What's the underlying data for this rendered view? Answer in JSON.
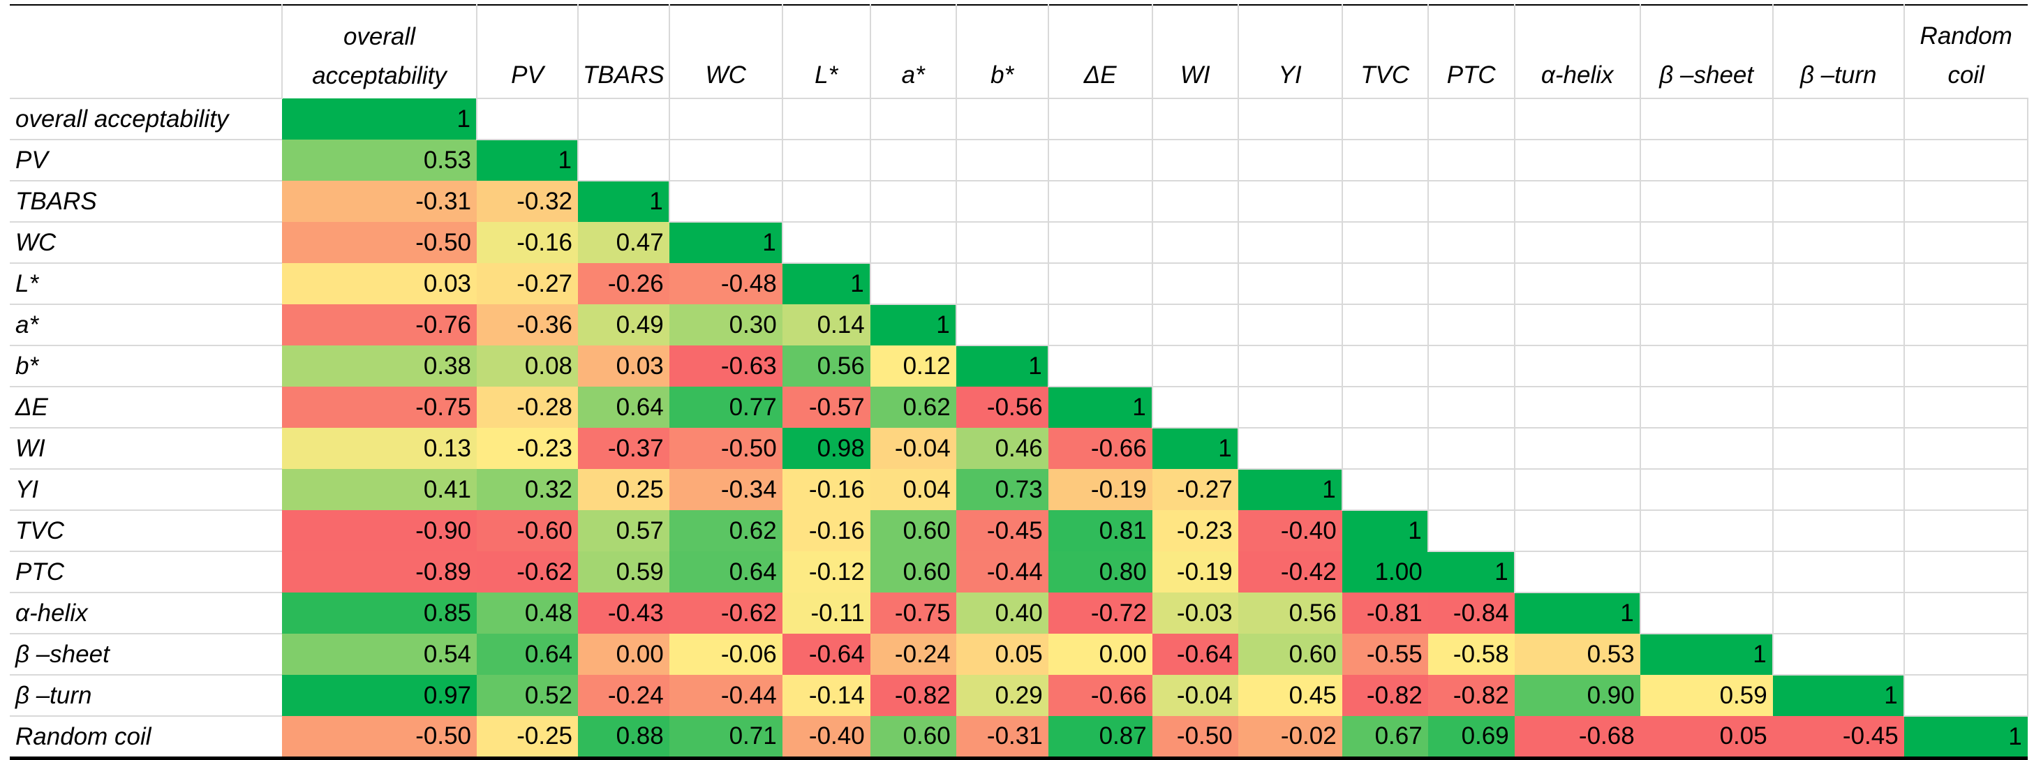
{
  "chart_data": {
    "type": "heatmap",
    "columns": [
      "overall acceptability",
      "PV",
      "TBARS",
      "WC",
      "L*",
      "a*",
      "b*",
      "ΔE",
      "WI",
      "YI",
      "TVC",
      "PTC",
      "α-helix",
      "β –sheet",
      "β –turn",
      "Random coil"
    ],
    "rows": [
      "overall acceptability",
      "PV",
      "TBARS",
      "WC",
      "L*",
      "a*",
      "b*",
      "ΔE",
      "WI",
      "YI",
      "TVC",
      "PTC",
      "α-helix",
      "β –sheet",
      "β –turn",
      "Random coil"
    ],
    "values": [
      [
        1
      ],
      [
        0.53,
        1
      ],
      [
        -0.31,
        -0.32,
        1
      ],
      [
        -0.5,
        -0.16,
        0.47,
        1
      ],
      [
        0.03,
        -0.27,
        -0.26,
        -0.48,
        1
      ],
      [
        -0.76,
        -0.36,
        0.49,
        0.3,
        0.14,
        1
      ],
      [
        0.38,
        0.08,
        0.03,
        -0.63,
        0.56,
        0.12,
        1
      ],
      [
        -0.75,
        -0.28,
        0.64,
        0.77,
        -0.57,
        0.62,
        -0.56,
        1
      ],
      [
        0.13,
        -0.23,
        -0.37,
        -0.5,
        0.98,
        -0.04,
        0.46,
        -0.66,
        1
      ],
      [
        0.41,
        0.32,
        0.25,
        -0.34,
        -0.16,
        0.04,
        0.73,
        -0.19,
        -0.27,
        1
      ],
      [
        -0.9,
        -0.6,
        0.57,
        0.62,
        -0.16,
        0.6,
        -0.45,
        0.81,
        -0.23,
        -0.4,
        1
      ],
      [
        -0.89,
        -0.62,
        0.59,
        0.64,
        -0.12,
        0.6,
        -0.44,
        0.8,
        -0.19,
        -0.42,
        1,
        1
      ],
      [
        0.85,
        0.48,
        -0.43,
        -0.62,
        -0.11,
        -0.75,
        0.4,
        -0.72,
        -0.03,
        0.56,
        -0.81,
        -0.84,
        1
      ],
      [
        0.54,
        0.64,
        0,
        -0.06,
        -0.64,
        -0.24,
        0.05,
        0,
        -0.64,
        0.6,
        -0.55,
        -0.58,
        0.53,
        1
      ],
      [
        0.97,
        0.52,
        -0.24,
        -0.44,
        -0.14,
        -0.82,
        0.29,
        -0.66,
        -0.04,
        0.45,
        -0.82,
        -0.82,
        0.9,
        0.59,
        1
      ],
      [
        -0.5,
        -0.25,
        0.88,
        0.71,
        -0.4,
        0.6,
        -0.31,
        0.87,
        -0.5,
        -0.02,
        0.67,
        0.69,
        -0.68,
        0.05,
        -0.45,
        1
      ]
    ],
    "value_labels": [
      [
        "1"
      ],
      [
        "0.53",
        "1"
      ],
      [
        "-0.31",
        "-0.32",
        "1"
      ],
      [
        "-0.50",
        "-0.16",
        "0.47",
        "1"
      ],
      [
        "0.03",
        "-0.27",
        "-0.26",
        "-0.48",
        "1"
      ],
      [
        "-0.76",
        "-0.36",
        "0.49",
        "0.30",
        "0.14",
        "1"
      ],
      [
        "0.38",
        "0.08",
        "0.03",
        "-0.63",
        "0.56",
        "0.12",
        "1"
      ],
      [
        "-0.75",
        "-0.28",
        "0.64",
        "0.77",
        "-0.57",
        "0.62",
        "-0.56",
        "1"
      ],
      [
        "0.13",
        "-0.23",
        "-0.37",
        "-0.50",
        "0.98",
        "-0.04",
        "0.46",
        "-0.66",
        "1"
      ],
      [
        "0.41",
        "0.32",
        "0.25",
        "-0.34",
        "-0.16",
        "0.04",
        "0.73",
        "-0.19",
        "-0.27",
        "1"
      ],
      [
        "-0.90",
        "-0.60",
        "0.57",
        "0.62",
        "-0.16",
        "0.60",
        "-0.45",
        "0.81",
        "-0.23",
        "-0.40",
        "1"
      ],
      [
        "-0.89",
        "-0.62",
        "0.59",
        "0.64",
        "-0.12",
        "0.60",
        "-0.44",
        "0.80",
        "-0.19",
        "-0.42",
        "1.00",
        "1"
      ],
      [
        "0.85",
        "0.48",
        "-0.43",
        "-0.62",
        "-0.11",
        "-0.75",
        "0.40",
        "-0.72",
        "-0.03",
        "0.56",
        "-0.81",
        "-0.84",
        "1"
      ],
      [
        "0.54",
        "0.64",
        "0.00",
        "-0.06",
        "-0.64",
        "-0.24",
        "0.05",
        "0.00",
        "-0.64",
        "0.60",
        "-0.55",
        "-0.58",
        "0.53",
        "1"
      ],
      [
        "0.97",
        "0.52",
        "-0.24",
        "-0.44",
        "-0.14",
        "-0.82",
        "0.29",
        "-0.66",
        "-0.04",
        "0.45",
        "-0.82",
        "-0.82",
        "0.90",
        "0.59",
        "1"
      ],
      [
        "-0.50",
        "-0.25",
        "0.88",
        "0.71",
        "-0.40",
        "0.60",
        "-0.31",
        "0.87",
        "-0.50",
        "-0.02",
        "0.67",
        "0.69",
        "-0.68",
        "0.05",
        "-0.45",
        "1"
      ]
    ],
    "colors": {
      "low": "#f8696b",
      "mid": "#ffeb84",
      "high": "#00b050"
    }
  }
}
